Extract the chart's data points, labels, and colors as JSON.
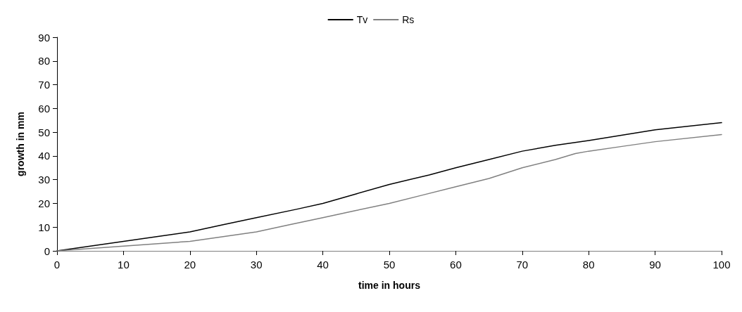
{
  "chart_data": {
    "type": "line",
    "xlabel": "time in hours",
    "ylabel": "growth in mm",
    "xlim": [
      0,
      100
    ],
    "xticks": [
      0,
      10,
      20,
      30,
      40,
      50,
      60,
      70,
      80,
      90,
      100
    ],
    "ylim": [
      0,
      90
    ],
    "yticks": [
      0,
      10,
      20,
      30,
      40,
      50,
      60,
      70,
      80,
      90
    ],
    "grid": false,
    "legend": "top",
    "marker": "none",
    "line_style": "solid",
    "series": [
      {
        "name": "Tv",
        "color": "#000000",
        "x": [
          0,
          10,
          15,
          20,
          25,
          30,
          36,
          40,
          45,
          50,
          56,
          60,
          65,
          70,
          75,
          80,
          90,
          100
        ],
        "values": [
          0,
          4,
          6,
          8,
          11,
          14,
          17.5,
          20,
          24,
          28,
          32,
          35,
          38.5,
          42,
          44.5,
          46.5,
          51,
          54
        ]
      },
      {
        "name": "Rs",
        "color": "#808080",
        "x": [
          0,
          10,
          20,
          25,
          30,
          35,
          40,
          45,
          50,
          55,
          60,
          65,
          70,
          75,
          78,
          80,
          85,
          90,
          100
        ],
        "values": [
          0,
          2,
          4,
          6,
          8,
          11,
          14,
          17,
          20,
          23.5,
          27,
          30.5,
          35,
          38.5,
          41,
          42,
          44,
          46,
          49
        ]
      }
    ]
  }
}
